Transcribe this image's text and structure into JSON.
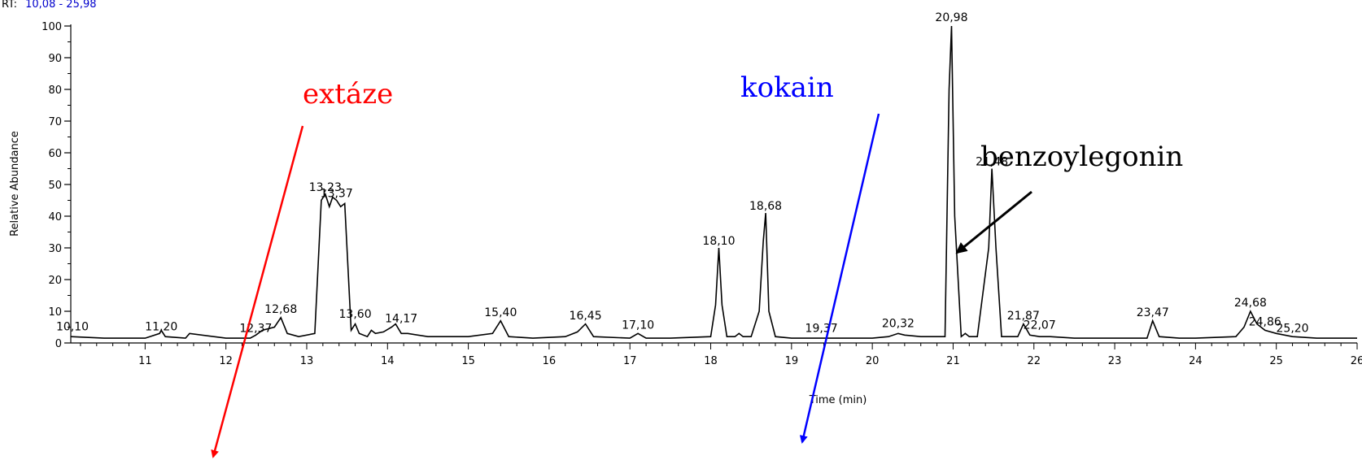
{
  "chart_data": {
    "type": "line",
    "rt_label": "RT:",
    "rt_value": "10,08 - 25,98",
    "ylabel": "Relative Abundance",
    "xlabel": "Time (min)",
    "xlim": [
      10.08,
      26.0
    ],
    "ylim": [
      0,
      100
    ],
    "x_ticks": [
      "11",
      "12",
      "13",
      "14",
      "15",
      "16",
      "17",
      "18",
      "19",
      "20",
      "21",
      "22",
      "23",
      "24",
      "25",
      "26"
    ],
    "y_ticks": [
      "0",
      "10",
      "20",
      "30",
      "40",
      "50",
      "60",
      "70",
      "80",
      "90",
      "100"
    ],
    "series": [
      {
        "x": [
          10.08,
          10.5,
          11.0,
          11.18,
          11.2,
          11.25,
          11.5,
          11.55,
          12.0,
          12.3,
          12.37,
          12.45,
          12.6,
          12.68,
          12.76,
          12.9,
          13.1,
          13.18,
          13.23,
          13.28,
          13.32,
          13.37,
          13.42,
          13.47,
          13.55,
          13.6,
          13.65,
          13.75,
          13.8,
          13.85,
          13.95,
          14.05,
          14.1,
          14.17,
          14.25,
          14.5,
          15.0,
          15.3,
          15.4,
          15.5,
          15.8,
          16.2,
          16.35,
          16.45,
          16.55,
          17.0,
          17.1,
          17.2,
          17.5,
          18.0,
          18.06,
          18.1,
          18.14,
          18.2,
          18.3,
          18.35,
          18.4,
          18.5,
          18.6,
          18.65,
          18.68,
          18.72,
          18.8,
          19.0,
          19.37,
          19.5,
          20.0,
          20.2,
          20.32,
          20.4,
          20.6,
          20.9,
          20.95,
          20.98,
          21.02,
          21.1,
          21.15,
          21.2,
          21.3,
          21.44,
          21.48,
          21.53,
          21.6,
          21.8,
          21.87,
          21.95,
          22.07,
          22.2,
          22.5,
          23.0,
          23.4,
          23.47,
          23.55,
          23.8,
          24.0,
          24.5,
          24.6,
          24.68,
          24.76,
          24.86,
          25.0,
          25.2,
          25.5,
          26.0
        ],
        "y": [
          2,
          1.5,
          1.5,
          3,
          4,
          2,
          1.5,
          3,
          1.5,
          1.5,
          2.5,
          4,
          5,
          8,
          3,
          2,
          3,
          45,
          47,
          43,
          46,
          45,
          43,
          44,
          4,
          6,
          3,
          2,
          4,
          3,
          3.5,
          5,
          6,
          3,
          3,
          2,
          2,
          3,
          7,
          2,
          1.5,
          2,
          3.5,
          6,
          2,
          1.5,
          3,
          1.5,
          1.5,
          2,
          12,
          30,
          12,
          2,
          2,
          3,
          2,
          2,
          10,
          32,
          41,
          10,
          2,
          1.5,
          1.5,
          1.5,
          1.5,
          2,
          3,
          2.5,
          2,
          2,
          80,
          100,
          40,
          2,
          3,
          2,
          2,
          30,
          55,
          30,
          2,
          2,
          6,
          2.5,
          2,
          2,
          1.5,
          1.5,
          1.5,
          7,
          2,
          1.5,
          1.5,
          2,
          5,
          10,
          6,
          4,
          3,
          2,
          1.5,
          1.5
        ]
      }
    ],
    "peak_labels": [
      {
        "x": 10.1,
        "y": 4,
        "text": "10,10"
      },
      {
        "x": 11.2,
        "y": 4,
        "text": "11,20"
      },
      {
        "x": 12.37,
        "y": 3.5,
        "text": "12,37"
      },
      {
        "x": 12.68,
        "y": 9.5,
        "text": "12,68"
      },
      {
        "x": 13.23,
        "y": 48,
        "text": "13,23"
      },
      {
        "x": 13.37,
        "y": 46,
        "text": "13,37"
      },
      {
        "x": 13.6,
        "y": 8,
        "text": "13,60"
      },
      {
        "x": 14.17,
        "y": 6.5,
        "text": "14,17"
      },
      {
        "x": 15.4,
        "y": 8.5,
        "text": "15,40"
      },
      {
        "x": 16.45,
        "y": 7.5,
        "text": "16,45"
      },
      {
        "x": 17.1,
        "y": 4.5,
        "text": "17,10"
      },
      {
        "x": 18.1,
        "y": 31,
        "text": "18,10"
      },
      {
        "x": 18.68,
        "y": 42,
        "text": "18,68"
      },
      {
        "x": 19.37,
        "y": 3.5,
        "text": "19,37"
      },
      {
        "x": 20.32,
        "y": 5,
        "text": "20,32"
      },
      {
        "x": 20.98,
        "y": 101.5,
        "text": "20,98"
      },
      {
        "x": 21.48,
        "y": 56,
        "text": "21,48"
      },
      {
        "x": 21.87,
        "y": 7.5,
        "text": "21,87"
      },
      {
        "x": 22.07,
        "y": 4.5,
        "text": "22,07"
      },
      {
        "x": 23.47,
        "y": 8.5,
        "text": "23,47"
      },
      {
        "x": 24.68,
        "y": 11.5,
        "text": "24,68"
      },
      {
        "x": 24.86,
        "y": 5.5,
        "text": "24,86"
      },
      {
        "x": 25.2,
        "y": 3.5,
        "text": "25,20"
      }
    ],
    "annotations": [
      {
        "text": "extáze",
        "color": "#ff0000"
      },
      {
        "text": "kokain",
        "color": "#0000ff"
      },
      {
        "text": "benzoylegonin",
        "color": "#000000"
      }
    ],
    "grid": false
  }
}
